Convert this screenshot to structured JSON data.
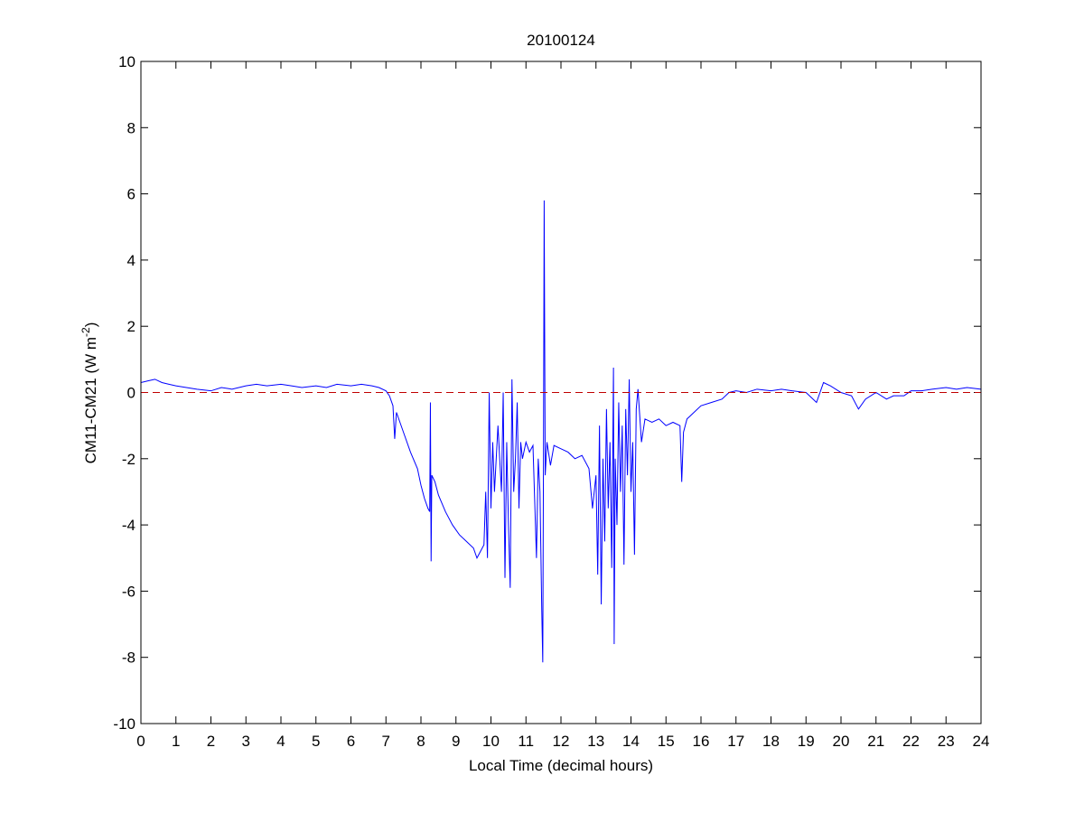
{
  "chart_data": {
    "type": "line",
    "title": "20100124",
    "xlabel": "Local Time (decimal hours)",
    "ylabel": {
      "text": "CM11-CM21 (W m",
      "sup": "-2",
      "close": ")"
    },
    "xlim": [
      0,
      24
    ],
    "xticks": [
      0,
      1,
      2,
      3,
      4,
      5,
      6,
      7,
      8,
      9,
      10,
      11,
      12,
      13,
      14,
      15,
      16,
      17,
      18,
      19,
      20,
      21,
      22,
      23,
      24
    ],
    "ylim": [
      -10,
      10
    ],
    "yticks": [
      -10,
      -8,
      -6,
      -4,
      -2,
      0,
      2,
      4,
      6,
      8,
      10
    ],
    "grid": false,
    "color": "#0000ff",
    "reference_line": {
      "value": 0,
      "color": "#c00000",
      "dashed": true
    },
    "x": [
      0,
      0.2,
      0.4,
      0.6,
      0.8,
      1.0,
      1.3,
      1.6,
      2.0,
      2.3,
      2.6,
      3.0,
      3.3,
      3.6,
      4.0,
      4.3,
      4.6,
      5.0,
      5.3,
      5.6,
      6.0,
      6.3,
      6.6,
      6.8,
      7.0,
      7.1,
      7.2,
      7.25,
      7.3,
      7.5,
      7.7,
      7.9,
      8.0,
      8.1,
      8.2,
      8.25,
      8.27,
      8.29,
      8.31,
      8.4,
      8.5,
      8.7,
      8.9,
      9.1,
      9.3,
      9.5,
      9.6,
      9.7,
      9.8,
      9.85,
      9.9,
      9.95,
      10.0,
      10.05,
      10.1,
      10.2,
      10.3,
      10.35,
      10.4,
      10.45,
      10.5,
      10.55,
      10.6,
      10.65,
      10.7,
      10.75,
      10.8,
      10.85,
      10.9,
      11.0,
      11.1,
      11.2,
      11.3,
      11.35,
      11.4,
      11.45,
      11.48,
      11.5,
      11.52,
      11.55,
      11.6,
      11.7,
      11.8,
      12.0,
      12.2,
      12.4,
      12.6,
      12.8,
      12.9,
      13.0,
      13.05,
      13.1,
      13.15,
      13.2,
      13.25,
      13.3,
      13.35,
      13.4,
      13.45,
      13.5,
      13.52,
      13.55,
      13.6,
      13.65,
      13.7,
      13.75,
      13.8,
      13.85,
      13.9,
      13.95,
      14.0,
      14.05,
      14.1,
      14.15,
      14.2,
      14.3,
      14.4,
      14.6,
      14.8,
      15.0,
      15.2,
      15.4,
      15.45,
      15.5,
      15.6,
      15.8,
      16.0,
      16.3,
      16.6,
      16.8,
      17.0,
      17.3,
      17.6,
      18.0,
      18.3,
      18.6,
      19.0,
      19.3,
      19.5,
      19.7,
      20.0,
      20.3,
      20.5,
      20.7,
      21.0,
      21.3,
      21.5,
      21.8,
      22.0,
      22.3,
      22.6,
      23.0,
      23.3,
      23.6,
      24.0
    ],
    "values": [
      0.3,
      0.35,
      0.4,
      0.3,
      0.25,
      0.2,
      0.15,
      0.1,
      0.05,
      0.15,
      0.1,
      0.2,
      0.25,
      0.2,
      0.25,
      0.2,
      0.15,
      0.2,
      0.15,
      0.25,
      0.2,
      0.25,
      0.2,
      0.15,
      0.05,
      -0.1,
      -0.4,
      -1.4,
      -0.6,
      -1.2,
      -1.8,
      -2.3,
      -2.8,
      -3.2,
      -3.5,
      -3.6,
      -0.3,
      -5.1,
      -2.5,
      -2.7,
      -3.1,
      -3.6,
      -4.0,
      -4.3,
      -4.5,
      -4.7,
      -5.0,
      -4.8,
      -4.6,
      -3.0,
      -5.0,
      0.0,
      -3.5,
      -1.5,
      -3.0,
      -1.0,
      -3.0,
      0.0,
      -5.6,
      -1.5,
      -4.0,
      -5.9,
      0.4,
      -3.0,
      -2.0,
      -0.3,
      -3.5,
      -1.5,
      -2.0,
      -1.5,
      -1.8,
      -1.6,
      -5.0,
      -2.0,
      -3.0,
      -6.5,
      -8.15,
      -2.0,
      5.8,
      -2.5,
      -1.5,
      -2.2,
      -1.6,
      -1.7,
      -1.8,
      -2.0,
      -1.9,
      -2.3,
      -3.5,
      -2.5,
      -5.5,
      -1.0,
      -6.4,
      -2.0,
      -4.5,
      -0.5,
      -3.5,
      -1.5,
      -5.3,
      0.75,
      -7.6,
      -2.0,
      -4.0,
      -0.3,
      -3.0,
      -1.0,
      -5.2,
      -0.5,
      -2.5,
      0.4,
      -3.0,
      -1.5,
      -4.9,
      -0.5,
      0.1,
      -1.5,
      -0.8,
      -0.9,
      -0.8,
      -1.0,
      -0.9,
      -1.0,
      -2.7,
      -1.2,
      -0.8,
      -0.6,
      -0.4,
      -0.3,
      -0.2,
      0.0,
      0.05,
      0.0,
      0.1,
      0.05,
      0.1,
      0.05,
      0.0,
      -0.3,
      0.3,
      0.2,
      0.0,
      -0.1,
      -0.5,
      -0.2,
      0.0,
      -0.2,
      -0.1,
      -0.1,
      0.05,
      0.05,
      0.1,
      0.15,
      0.1,
      0.15,
      0.1
    ]
  }
}
